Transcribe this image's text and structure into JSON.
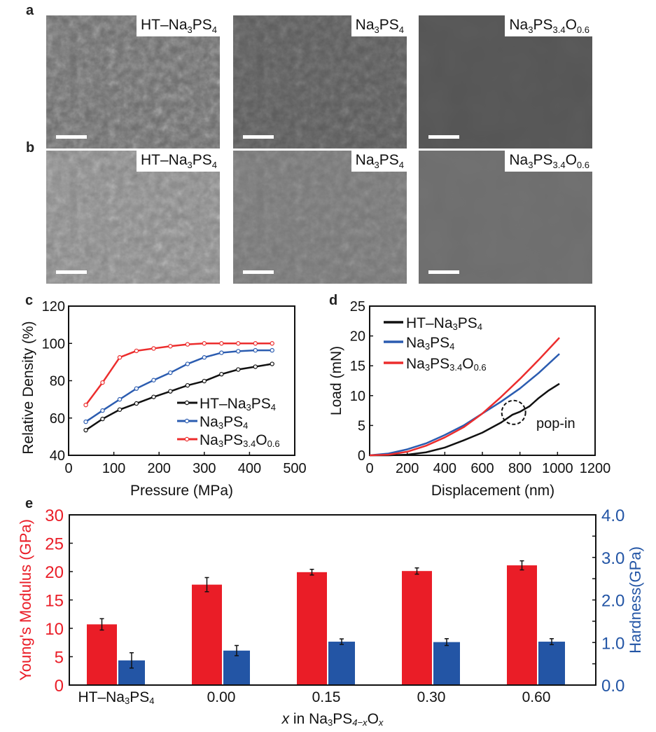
{
  "panel_letters": [
    "a",
    "b",
    "c",
    "d",
    "e"
  ],
  "sem_images": {
    "row_a": [
      {
        "label": [
          [
            "HT–Na",
            ""
          ],
          [
            "3",
            "sub"
          ],
          [
            "PS",
            ""
          ],
          [
            "4",
            "sub"
          ]
        ],
        "tone": "#6a6a6a"
      },
      {
        "label": [
          [
            "Na",
            ""
          ],
          [
            "3",
            "sub"
          ],
          [
            "PS",
            ""
          ],
          [
            "4",
            "sub"
          ]
        ],
        "tone": "#5a5a5a"
      },
      {
        "label": [
          [
            "Na",
            ""
          ],
          [
            "3",
            "sub"
          ],
          [
            "PS",
            ""
          ],
          [
            "3.4",
            "sub"
          ],
          [
            "O",
            ""
          ],
          [
            "0.6",
            "sub"
          ]
        ],
        "tone": "#555555"
      }
    ],
    "row_b": [
      {
        "label": [
          [
            "HT–Na",
            ""
          ],
          [
            "3",
            "sub"
          ],
          [
            "PS",
            ""
          ],
          [
            "4",
            "sub"
          ]
        ],
        "tone": "#8a8a8a"
      },
      {
        "label": [
          [
            "Na",
            ""
          ],
          [
            "3",
            "sub"
          ],
          [
            "PS",
            ""
          ],
          [
            "4",
            "sub"
          ]
        ],
        "tone": "#777777"
      },
      {
        "label": [
          [
            "Na",
            ""
          ],
          [
            "3",
            "sub"
          ],
          [
            "PS",
            ""
          ],
          [
            "3.4",
            "sub"
          ],
          [
            "O",
            ""
          ],
          [
            "0.6",
            "sub"
          ]
        ],
        "tone": "#6e6e6e"
      }
    ]
  },
  "chart_data": [
    {
      "id": "c",
      "type": "line",
      "xlabel": "Pressure (MPa)",
      "ylabel": "Relative Density (%)",
      "xlim": [
        0,
        500
      ],
      "ylim": [
        40,
        120
      ],
      "xticks": [
        0,
        100,
        200,
        300,
        400,
        500
      ],
      "yticks": [
        40,
        60,
        80,
        100,
        120
      ],
      "legend_position": "bottom-right",
      "x": [
        38,
        75,
        113,
        150,
        188,
        225,
        263,
        300,
        338,
        375,
        413,
        450
      ],
      "series": [
        {
          "name": [
            [
              "HT–Na",
              ""
            ],
            [
              "3",
              "sub"
            ],
            [
              "PS",
              ""
            ],
            [
              "4",
              "sub"
            ]
          ],
          "color": "#111111",
          "values": [
            53.5,
            59.5,
            64.5,
            67.8,
            71.3,
            74.3,
            77.5,
            79.8,
            83.5,
            86,
            87.5,
            89
          ]
        },
        {
          "name": [
            [
              "Na",
              ""
            ],
            [
              "3",
              "sub"
            ],
            [
              "PS",
              ""
            ],
            [
              "4",
              "sub"
            ]
          ],
          "color": "#2b5cb0",
          "values": [
            58,
            64,
            70,
            75.8,
            80.3,
            84.3,
            89,
            92.5,
            95,
            95.8,
            96.3,
            96.3
          ]
        },
        {
          "name": [
            [
              "Na",
              ""
            ],
            [
              "3",
              "sub"
            ],
            [
              "PS",
              ""
            ],
            [
              "3.4",
              "sub"
            ],
            [
              "O",
              ""
            ],
            [
              "0.6",
              "sub"
            ]
          ],
          "color": "#ec2d2d",
          "values": [
            67,
            79,
            92.5,
            96,
            97.3,
            98.5,
            99.5,
            100,
            100,
            100,
            100,
            100
          ]
        }
      ]
    },
    {
      "id": "d",
      "type": "line",
      "xlabel": "Displacement (nm)",
      "ylabel": "Load (mN)",
      "xlim": [
        0,
        1200
      ],
      "ylim": [
        0,
        25
      ],
      "xticks": [
        0,
        200,
        400,
        600,
        800,
        1000,
        1200
      ],
      "yticks": [
        0,
        5,
        10,
        15,
        20,
        25
      ],
      "legend_position": "top-left",
      "annotation": {
        "text": "pop-in",
        "x": 800,
        "y": 7.3
      },
      "series": [
        {
          "name": [
            [
              "HT–Na",
              ""
            ],
            [
              "3",
              "sub"
            ],
            [
              "PS",
              ""
            ],
            [
              "4",
              "sub"
            ]
          ],
          "color": "#111111",
          "points": [
            [
              0,
              0
            ],
            [
              100,
              0
            ],
            [
              200,
              0.1
            ],
            [
              300,
              0.5
            ],
            [
              400,
              1.3
            ],
            [
              500,
              2.5
            ],
            [
              600,
              3.8
            ],
            [
              700,
              5.5
            ],
            [
              760,
              6.8
            ],
            [
              800,
              7.3
            ],
            [
              850,
              8.2
            ],
            [
              900,
              9.6
            ],
            [
              950,
              10.8
            ],
            [
              1010,
              12
            ]
          ]
        },
        {
          "name": [
            [
              "Na",
              ""
            ],
            [
              "3",
              "sub"
            ],
            [
              "PS",
              ""
            ],
            [
              "4",
              "sub"
            ]
          ],
          "color": "#2b5cb0",
          "points": [
            [
              0,
              0
            ],
            [
              100,
              0.3
            ],
            [
              200,
              1
            ],
            [
              300,
              2
            ],
            [
              400,
              3.4
            ],
            [
              500,
              5
            ],
            [
              600,
              7
            ],
            [
              700,
              9
            ],
            [
              800,
              11.2
            ],
            [
              900,
              13.8
            ],
            [
              1010,
              17
            ]
          ]
        },
        {
          "name": [
            [
              "Na",
              ""
            ],
            [
              "3",
              "sub"
            ],
            [
              "PS",
              ""
            ],
            [
              "3.4",
              "sub"
            ],
            [
              "O",
              ""
            ],
            [
              "0.6",
              "sub"
            ]
          ],
          "color": "#ec2d2d",
          "points": [
            [
              0,
              0
            ],
            [
              100,
              0.1
            ],
            [
              200,
              0.6
            ],
            [
              300,
              1.6
            ],
            [
              400,
              3
            ],
            [
              500,
              4.7
            ],
            [
              600,
              7
            ],
            [
              700,
              9.8
            ],
            [
              800,
              12.8
            ],
            [
              900,
              16
            ],
            [
              1010,
              19.7
            ]
          ]
        }
      ]
    },
    {
      "id": "e",
      "type": "bar",
      "categories": [
        [
          [
            "HT–Na",
            ""
          ],
          [
            "3",
            "sub"
          ],
          [
            "PS",
            ""
          ],
          [
            "4",
            "sub"
          ]
        ],
        [
          [
            "0.00",
            ""
          ]
        ],
        [
          [
            "0.15",
            ""
          ]
        ],
        [
          [
            "0.30",
            ""
          ]
        ],
        [
          [
            "0.60",
            ""
          ]
        ]
      ],
      "xlabel": [
        [
          "x",
          "it"
        ],
        [
          " in Na",
          ""
        ],
        [
          "3",
          "sub"
        ],
        [
          "PS",
          ""
        ],
        [
          "4−x",
          "subit"
        ],
        [
          "O",
          ""
        ],
        [
          "x",
          "subit"
        ]
      ],
      "ylabel_left": "Young's Modulus (GPa)",
      "ylabel_right": "Hardness(GPa)",
      "ylim_left": [
        0,
        30
      ],
      "ylim_right": [
        0,
        4
      ],
      "yticks_left": [
        "0",
        "5",
        "10",
        "15",
        "20",
        "25",
        "30"
      ],
      "yticks_right": [
        "0.0",
        "1.0",
        "2.0",
        "3.0",
        "4.0"
      ],
      "series": [
        {
          "name": "Young's Modulus",
          "axis": "left",
          "color": "#ea1d27",
          "values": [
            10.7,
            17.7,
            19.9,
            20.1,
            21.1
          ],
          "errors": [
            1.0,
            1.25,
            0.5,
            0.55,
            0.8
          ]
        },
        {
          "name": "Hardness",
          "axis": "right",
          "color": "#2355a5",
          "values": [
            0.58,
            0.81,
            1.02,
            1.01,
            1.02
          ],
          "errors": [
            0.18,
            0.12,
            0.065,
            0.08,
            0.07
          ]
        }
      ]
    }
  ]
}
